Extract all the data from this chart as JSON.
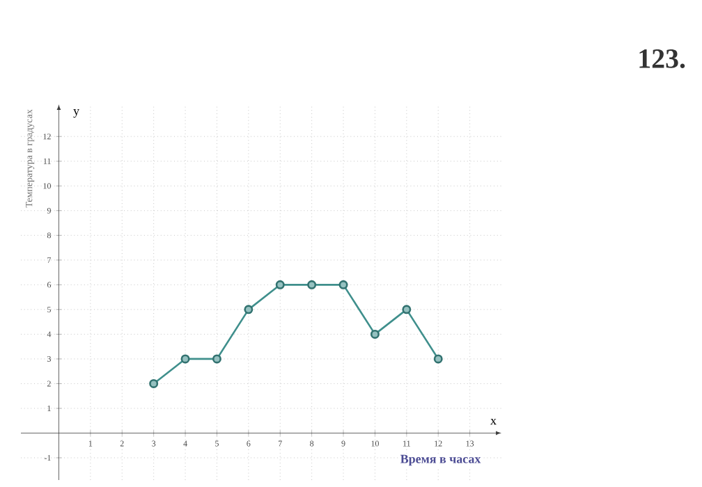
{
  "chart_data": {
    "type": "line",
    "xlabel": "Время в часах",
    "ylabel": "Температура в градусах",
    "annotations": [
      "123.",
      "x",
      "y"
    ],
    "x": [
      3,
      4,
      5,
      6,
      7,
      8,
      9,
      10,
      11,
      12
    ],
    "series": [
      {
        "color": "#3f8f8c",
        "values": [
          2,
          3,
          3,
          5,
          6,
          6,
          6,
          4,
          5,
          3
        ]
      }
    ],
    "xlim": [
      -1.2,
      14
    ],
    "ylim": [
      -1.9,
      13.3
    ],
    "xticks": [
      1,
      2,
      3,
      4,
      5,
      6,
      7,
      8,
      9,
      10,
      11,
      12,
      13
    ],
    "yticks": [
      -1,
      1,
      2,
      3,
      4,
      5,
      6,
      7,
      8,
      9,
      10,
      11,
      12
    ],
    "grid": true,
    "marker": "circle",
    "line_style": "solid"
  }
}
